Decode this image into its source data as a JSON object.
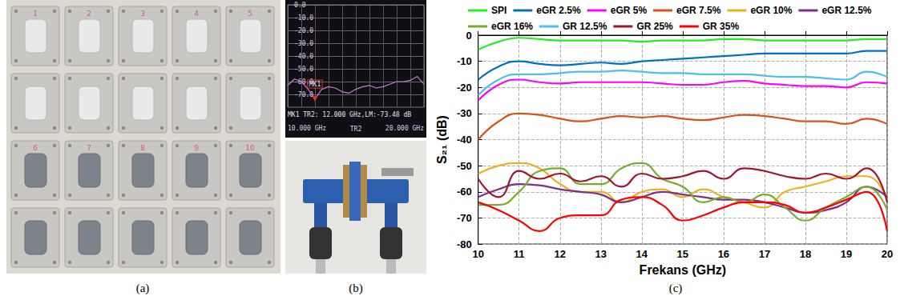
{
  "chart_data": [
    {
      "type": "line",
      "x": [
        10,
        10.5,
        11,
        11.5,
        12,
        12.5,
        13,
        13.5,
        14,
        14.5,
        15,
        15.5,
        16,
        16.5,
        17,
        17.5,
        18,
        18.5,
        19,
        19.5,
        20
      ],
      "values": [
        -63,
        -58,
        -60,
        -66,
        -73.48,
        -66,
        -64,
        -65,
        -68,
        -69,
        -66,
        -64,
        -63,
        -65,
        -64,
        -62,
        -60,
        -60,
        -59,
        -56,
        -62
      ],
      "color": "#c878d8",
      "xlim": [
        10,
        20
      ],
      "xticks": [
        {
          "value": 10,
          "label": "10.000 GHz"
        },
        {
          "value": 20,
          "label": "20.000 GHz"
        }
      ],
      "ylim": [
        -80,
        0
      ],
      "yticks": [
        {
          "value": 0,
          "label": "0.0"
        },
        {
          "value": -10,
          "label": "-10.0"
        },
        {
          "value": -20,
          "label": "-20.0"
        },
        {
          "value": -30,
          "label": "-30.0"
        },
        {
          "value": -40,
          "label": "-40.0"
        },
        {
          "value": -50,
          "label": "-50.0"
        },
        {
          "value": -60,
          "label": "-60.0"
        },
        {
          "value": -70,
          "label": "-70.0"
        }
      ],
      "grid": true,
      "annotations": [
        {
          "text": "MK1",
          "x": 12,
          "y": -73.48
        },
        {
          "text": "MK1 TR2: 12.000 GHz,LM:-73.48 dB"
        },
        {
          "text": "TR2"
        }
      ]
    },
    {
      "type": "line",
      "x_label": "Frekans (GHz)",
      "y_label": "S₂₁ (dB)",
      "x": [
        10,
        10.5,
        11,
        11.5,
        12,
        12.5,
        13,
        13.5,
        14,
        14.5,
        15,
        15.5,
        16,
        16.5,
        17,
        17.5,
        18,
        18.5,
        19,
        19.5,
        20
      ],
      "series": [
        {
          "name": "SPI",
          "color": "#22ee22",
          "values": [
            -5.5,
            -2.5,
            -1,
            -1.5,
            -2,
            -2,
            -2,
            -2,
            -2.5,
            -2,
            -2,
            -2,
            -1.5,
            -1.5,
            -2,
            -2,
            -2,
            -2,
            -2,
            -1.5,
            -1.5
          ]
        },
        {
          "name": "eGR 2.5%",
          "color": "#0072bd",
          "values": [
            -17,
            -12,
            -10,
            -11,
            -11.5,
            -11,
            -10.5,
            -11,
            -10,
            -9.5,
            -9,
            -8.5,
            -8,
            -7.5,
            -7,
            -7,
            -7,
            -7,
            -7,
            -6,
            -6
          ]
        },
        {
          "name": "eGR 5%",
          "color": "#ff00ff",
          "values": [
            -25,
            -19,
            -17,
            -18,
            -18.5,
            -18,
            -18,
            -18,
            -18,
            -18.5,
            -19,
            -19,
            -18,
            -17.5,
            -18.5,
            -19,
            -19.5,
            -19.5,
            -20,
            -18,
            -18.5
          ]
        },
        {
          "name": "eGR 7.5%",
          "color": "#d95319",
          "values": [
            -40,
            -33,
            -30,
            -30.5,
            -32,
            -33,
            -32,
            -31,
            -31.5,
            -31,
            -32,
            -32.5,
            -31.5,
            -30.5,
            -31,
            -32,
            -33,
            -33,
            -34,
            -32,
            -34
          ]
        },
        {
          "name": "eGR 10%",
          "color": "#edb120",
          "values": [
            -53,
            -50,
            -49,
            -51,
            -57,
            -60,
            -60,
            -64,
            -60,
            -59,
            -62,
            -59,
            -62,
            -64,
            -66,
            -60,
            -58,
            -56,
            -54,
            -54,
            -63
          ]
        },
        {
          "name": "eGR 12.5%",
          "color": "#7e2f8e",
          "values": [
            -62,
            -59,
            -57,
            -57.5,
            -59,
            -60,
            -61,
            -64,
            -62,
            -60,
            -61,
            -62,
            -63,
            -63,
            -64,
            -66,
            -68,
            -67,
            -64,
            -58,
            -62
          ]
        },
        {
          "name": "eGR 16%",
          "color": "#77ac30",
          "values": [
            -65,
            -65,
            -60,
            -52,
            -51,
            -57,
            -57,
            -51,
            -49,
            -55,
            -58,
            -64,
            -62,
            -64,
            -61,
            -66,
            -71,
            -66,
            -62,
            -58,
            -67
          ]
        },
        {
          "name": "GR 12.5%",
          "color": "#4dbeee",
          "values": [
            -23,
            -17,
            -15,
            -15,
            -14.5,
            -14,
            -14,
            -13.5,
            -14,
            -14.5,
            -14.5,
            -15,
            -15,
            -15,
            -15.5,
            -16,
            -16,
            -16.5,
            -17,
            -14,
            -16
          ]
        },
        {
          "name": "GR 25%",
          "color": "#a2142f",
          "values": [
            -55,
            -62,
            -52,
            -55,
            -53,
            -56,
            -54,
            -58,
            -53,
            -55,
            -54,
            -52,
            -55,
            -51,
            -52,
            -54,
            -55,
            -53,
            -55,
            -51,
            -64
          ]
        },
        {
          "name": "GR 35%",
          "color": "#ff0000",
          "values": [
            -64,
            -67,
            -71,
            -75,
            -70,
            -69,
            -69,
            -63,
            -62,
            -65,
            -71,
            -69,
            -66,
            -64,
            -64,
            -65,
            -68,
            -66,
            -63,
            -60,
            -75
          ]
        }
      ],
      "xlim": [
        10,
        20
      ],
      "xticks": [
        10,
        11,
        12,
        13,
        14,
        15,
        16,
        17,
        18,
        19,
        20
      ],
      "ylim": [
        -80,
        0
      ],
      "yticks": [
        -80,
        -70,
        -60,
        -50,
        -40,
        -30,
        -20,
        -10,
        0
      ],
      "grid": true,
      "legend": "top"
    }
  ],
  "panel_labels": [
    "(a)",
    "(b)",
    "(c)"
  ],
  "sample_numbers": [
    1,
    2,
    3,
    4,
    5,
    6,
    7,
    8,
    9,
    10
  ]
}
